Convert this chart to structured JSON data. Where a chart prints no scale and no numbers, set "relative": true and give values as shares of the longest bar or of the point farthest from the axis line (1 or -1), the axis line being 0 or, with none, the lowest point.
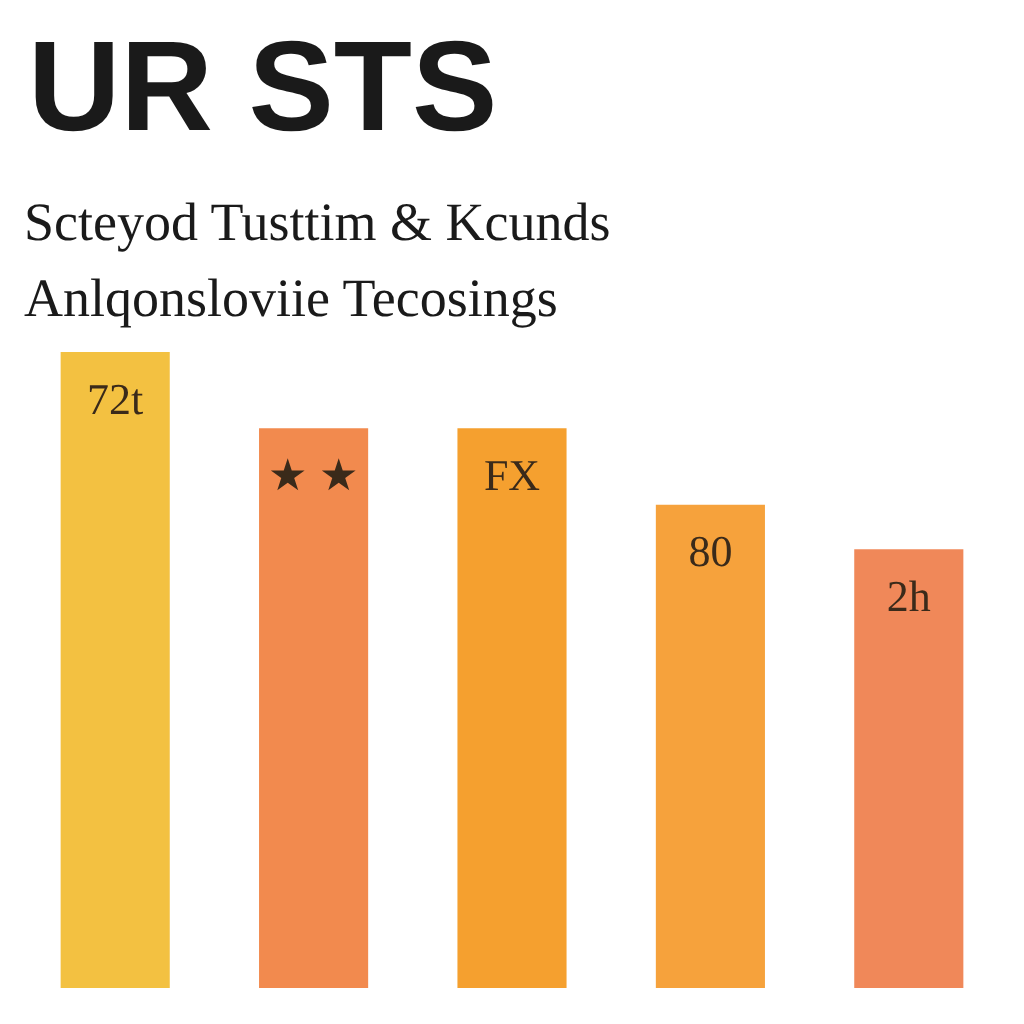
{
  "chart_data": {
    "type": "bar",
    "title": "UR STS",
    "subtitle": "Scteyod Tusttim & Kcunds\nAnlqonsloviie Tecosings",
    "categories": [
      null,
      null,
      null,
      null,
      null
    ],
    "values": [
      1,
      0.88,
      0.88,
      0.76,
      0.69
    ],
    "colors": [
      "#f3c141",
      "#f28a4e",
      "#f5a02f",
      "#f6a23c",
      "#f08859"
    ],
    "relative": true,
    "annotations": [
      "72t",
      "★ ★",
      "FX",
      "80",
      "2h"
    ]
  }
}
